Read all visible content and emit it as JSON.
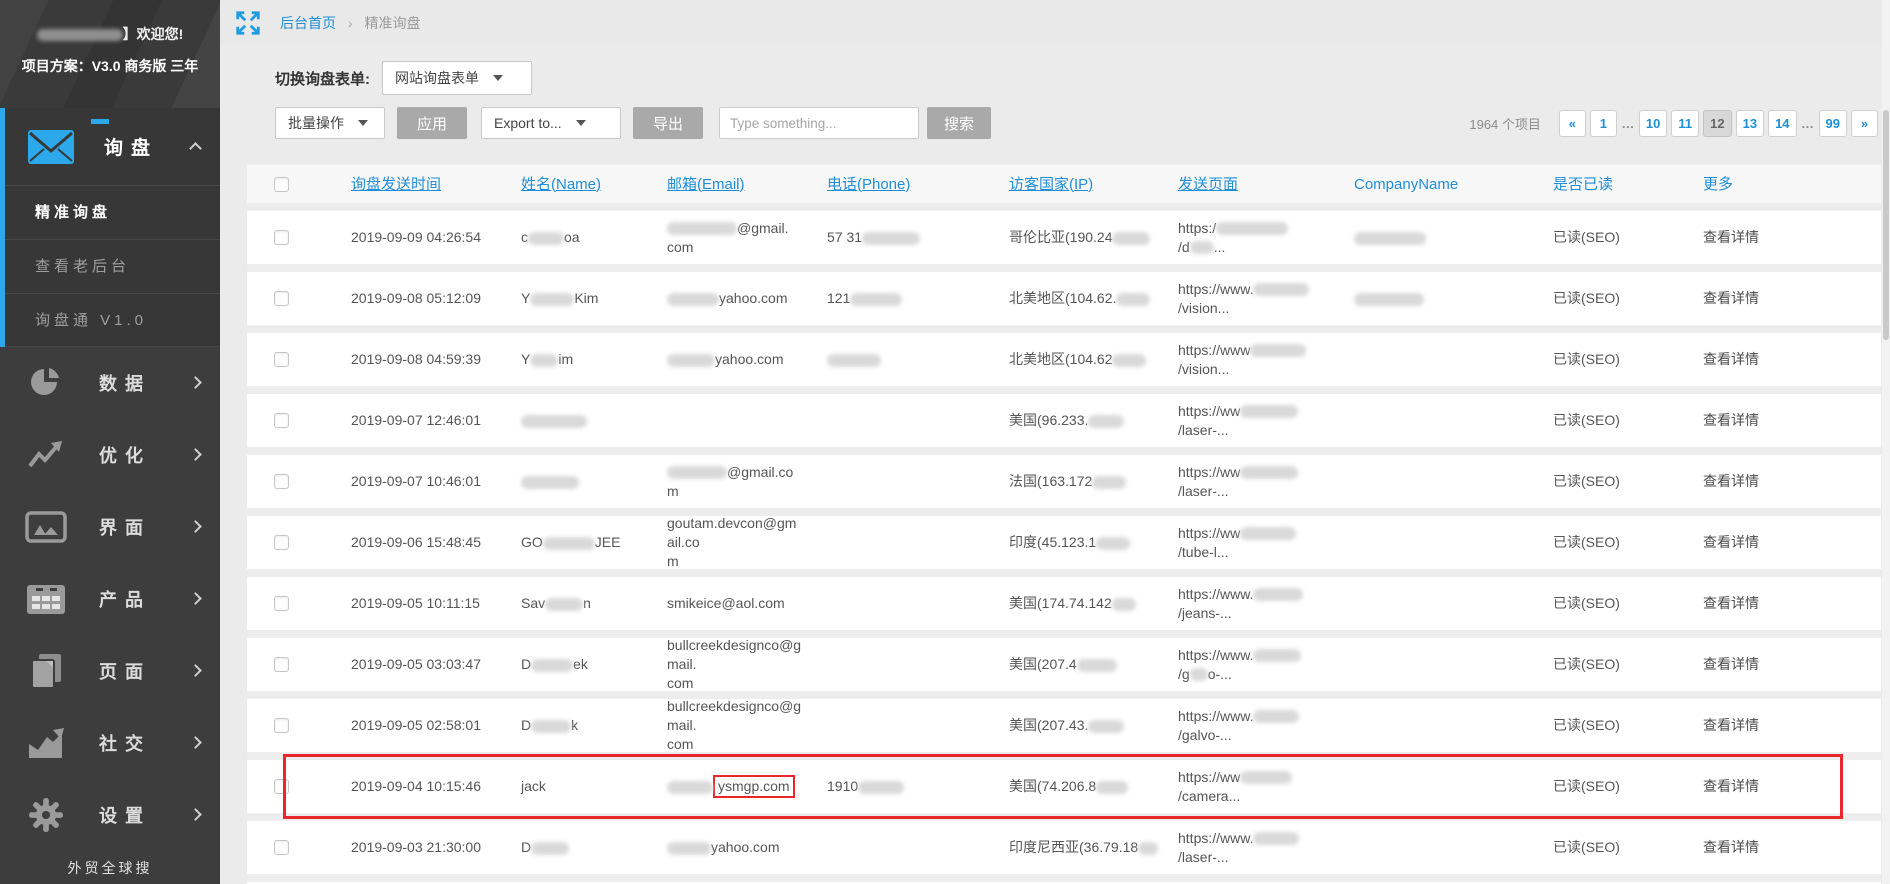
{
  "colors": {
    "accent_blue": "#2ba9ea",
    "link_blue": "#1e8fd5",
    "annotation_red": "#e8262b",
    "button_gray": "#a9a9a9"
  },
  "sidebar": {
    "welcome_suffix": "】欢迎您!",
    "plan": "项目方案：V3.0 商务版 三年",
    "group_label": "询盘",
    "submenu": [
      "精准询盘",
      "查看老后台",
      "询盘通 V1.0"
    ],
    "items": [
      {
        "label": "数据",
        "icon": "pie-chart"
      },
      {
        "label": "优化",
        "icon": "line-chart"
      },
      {
        "label": "界面",
        "icon": "image"
      },
      {
        "label": "产品",
        "icon": "table-grid"
      },
      {
        "label": "页面",
        "icon": "pages"
      },
      {
        "label": "社交",
        "icon": "trend-chart"
      },
      {
        "label": "设置",
        "icon": "gear"
      }
    ],
    "footer": "外贸全球搜"
  },
  "breadcrumb": {
    "home": "后台首页",
    "sep": "›",
    "current": "精准询盘"
  },
  "filters": {
    "switch_label": "切换询盘表单:",
    "form_select": "网站询盘表单",
    "bulk_select": "批量操作",
    "apply": "应用",
    "export_select": "Export to...",
    "export_btn": "导出",
    "search_placeholder": "Type something...",
    "search_btn": "搜索"
  },
  "pagination": {
    "total": "1964 个项目",
    "pages": [
      {
        "label": "«",
        "nav": true
      },
      {
        "label": "1"
      },
      {
        "label": "…",
        "gap": true
      },
      {
        "label": "10"
      },
      {
        "label": "11"
      },
      {
        "label": "12",
        "active": true
      },
      {
        "label": "13"
      },
      {
        "label": "14"
      },
      {
        "label": "…",
        "gap": true
      },
      {
        "label": "99"
      },
      {
        "label": "»",
        "nav": true
      }
    ]
  },
  "table": {
    "columns": [
      {
        "label": "",
        "underline": false
      },
      {
        "label": "询盘发送时间",
        "underline": true
      },
      {
        "label": "姓名(Name)",
        "underline": true
      },
      {
        "label": "邮箱(Email)",
        "underline": true
      },
      {
        "label": "电话(Phone)",
        "underline": true
      },
      {
        "label": "访客国家(IP)",
        "underline": true
      },
      {
        "label": "发送页面",
        "underline": true
      },
      {
        "label": "CompanyName",
        "underline": false
      },
      {
        "label": "是否已读",
        "underline": false
      },
      {
        "label": "更多",
        "underline": false
      }
    ],
    "rows": [
      {
        "hl": false,
        "time": "2019-09-09 04:26:54",
        "name": [
          {
            "t": "c"
          },
          {
            "r": 36
          },
          {
            "t": "oa"
          }
        ],
        "email": [
          {
            "r": 70
          },
          {
            "t": "@gmail."
          },
          {
            "b": true
          },
          {
            "t": "com"
          }
        ],
        "phone": [
          {
            "t": "57 31"
          },
          {
            "r": 58
          }
        ],
        "country": [
          {
            "t": "哥伦比亚(190.24"
          },
          {
            "r": 38
          }
        ],
        "url": [
          {
            "t": "https:/"
          },
          {
            "r": 72
          },
          {
            "b": true
          },
          {
            "t": "/d"
          },
          {
            "r": 24
          },
          {
            "t": "..."
          }
        ],
        "company": [
          {
            "r": 72
          }
        ],
        "read": "已读(SEO)",
        "more": "查看详情"
      },
      {
        "hl": false,
        "time": "2019-09-08 05:12:09",
        "name": [
          {
            "t": "Y"
          },
          {
            "r": 44
          },
          {
            "t": "Kim"
          }
        ],
        "email": [
          {
            "r": 52
          },
          {
            "t": "yahoo.com"
          }
        ],
        "phone": [
          {
            "t": "121"
          },
          {
            "r": 52
          }
        ],
        "country": [
          {
            "t": "北美地区(104.62."
          },
          {
            "r": 34
          }
        ],
        "url": [
          {
            "t": "https://www."
          },
          {
            "r": 56
          },
          {
            "b": true
          },
          {
            "t": "/vision..."
          }
        ],
        "company": [
          {
            "r": 70
          }
        ],
        "read": "已读(SEO)",
        "more": "查看详情"
      },
      {
        "hl": false,
        "time": "2019-09-08 04:59:39",
        "name": [
          {
            "t": "Y"
          },
          {
            "r": 28
          },
          {
            "t": "im"
          }
        ],
        "email": [
          {
            "r": 48
          },
          {
            "t": "yahoo.com"
          }
        ],
        "phone": [
          {
            "r": 54
          }
        ],
        "country": [
          {
            "t": "北美地区(104.62"
          },
          {
            "r": 34
          }
        ],
        "url": [
          {
            "t": "https://www"
          },
          {
            "r": 56
          },
          {
            "b": true
          },
          {
            "t": "/vision..."
          }
        ],
        "company": [],
        "read": "已读(SEO)",
        "more": "查看详情"
      },
      {
        "hl": false,
        "time": "2019-09-07 12:46:01",
        "name": [
          {
            "r": 66
          }
        ],
        "email": [],
        "phone": [],
        "country": [
          {
            "t": "美国(96.233."
          },
          {
            "r": 36
          }
        ],
        "url": [
          {
            "t": "https://ww"
          },
          {
            "r": 58
          },
          {
            "b": true
          },
          {
            "t": "/laser-..."
          }
        ],
        "company": [],
        "read": "已读(SEO)",
        "more": "查看详情"
      },
      {
        "hl": false,
        "time": "2019-09-07 10:46:01",
        "name": [
          {
            "r": 58
          }
        ],
        "email": [
          {
            "r": 60
          },
          {
            "t": "@gmail.co"
          },
          {
            "b": true
          },
          {
            "t": "m"
          }
        ],
        "phone": [],
        "country": [
          {
            "t": "法国(163.172"
          },
          {
            "r": 34
          }
        ],
        "url": [
          {
            "t": "https://ww"
          },
          {
            "r": 58
          },
          {
            "b": true
          },
          {
            "t": "/laser-..."
          }
        ],
        "company": [],
        "read": "已读(SEO)",
        "more": "查看详情"
      },
      {
        "hl": false,
        "time": "2019-09-06 15:48:45",
        "name": [
          {
            "t": "GO"
          },
          {
            "r": 52
          },
          {
            "t": "JEE"
          }
        ],
        "email": [
          {
            "t": "goutam.devcon@gmail.co"
          },
          {
            "b": true
          },
          {
            "t": "m"
          }
        ],
        "phone": [],
        "country": [
          {
            "t": "印度(45.123.1"
          },
          {
            "r": 34
          }
        ],
        "url": [
          {
            "t": "https://ww"
          },
          {
            "r": 56
          },
          {
            "b": true
          },
          {
            "t": "/tube-l..."
          }
        ],
        "company": [],
        "read": "已读(SEO)",
        "more": "查看详情"
      },
      {
        "hl": false,
        "time": "2019-09-05 10:11:15",
        "name": [
          {
            "t": "Sav"
          },
          {
            "r": 38
          },
          {
            "t": "n"
          }
        ],
        "email": [
          {
            "t": "smikeice@aol.com"
          }
        ],
        "phone": [],
        "country": [
          {
            "t": "美国(174.74.142"
          },
          {
            "r": 24
          }
        ],
        "url": [
          {
            "t": "https://www."
          },
          {
            "r": 50
          },
          {
            "b": true
          },
          {
            "t": "/jeans-..."
          }
        ],
        "company": [],
        "read": "已读(SEO)",
        "more": "查看详情"
      },
      {
        "hl": false,
        "time": "2019-09-05 03:03:47",
        "name": [
          {
            "t": "D"
          },
          {
            "r": 42
          },
          {
            "t": "ek"
          }
        ],
        "email": [
          {
            "t": "bullcreekdesignco@gmail."
          },
          {
            "b": true
          },
          {
            "t": "com"
          }
        ],
        "phone": [],
        "country": [
          {
            "t": "美国(207.4"
          },
          {
            "r": 40
          }
        ],
        "url": [
          {
            "t": "https://www."
          },
          {
            "r": 48
          },
          {
            "b": true
          },
          {
            "t": "/g"
          },
          {
            "r": 18
          },
          {
            "t": "o-..."
          }
        ],
        "company": [],
        "read": "已读(SEO)",
        "more": "查看详情"
      },
      {
        "hl": false,
        "time": "2019-09-05 02:58:01",
        "name": [
          {
            "t": "D"
          },
          {
            "r": 40
          },
          {
            "t": "k"
          }
        ],
        "email": [
          {
            "t": "bullcreekdesignco@gmail."
          },
          {
            "b": true
          },
          {
            "t": "com"
          }
        ],
        "phone": [],
        "country": [
          {
            "t": "美国(207.43."
          },
          {
            "r": 36
          }
        ],
        "url": [
          {
            "t": "https://www."
          },
          {
            "r": 46
          },
          {
            "b": true
          },
          {
            "t": "/galvo-..."
          }
        ],
        "company": [],
        "read": "已读(SEO)",
        "more": "查看详情"
      },
      {
        "hl": true,
        "time": "2019-09-04 10:15:46",
        "name": [
          {
            "t": "jack"
          }
        ],
        "email": [
          {
            "r": 46
          },
          {
            "t": "ysmgp.com",
            "box": true
          }
        ],
        "phone": [
          {
            "t": "1910"
          },
          {
            "r": 46
          }
        ],
        "country": [
          {
            "t": "美国(74.206.8"
          },
          {
            "r": 32
          }
        ],
        "url": [
          {
            "t": "https://ww"
          },
          {
            "r": 52
          },
          {
            "b": true
          },
          {
            "t": "/camera..."
          }
        ],
        "company": [],
        "read": "已读(SEO)",
        "more": "查看详情"
      },
      {
        "hl": false,
        "time": "2019-09-03 21:30:00",
        "name": [
          {
            "t": "D"
          },
          {
            "r": 38
          }
        ],
        "email": [
          {
            "r": 44
          },
          {
            "t": "yahoo.com"
          }
        ],
        "phone": [],
        "country": [
          {
            "t": "印度尼西亚(36.79.18"
          },
          {
            "r": 20
          }
        ],
        "url": [
          {
            "t": "https://www."
          },
          {
            "r": 46
          },
          {
            "b": true
          },
          {
            "t": "/laser-..."
          }
        ],
        "company": [],
        "read": "已读(SEO)",
        "more": "查看详情"
      }
    ]
  }
}
